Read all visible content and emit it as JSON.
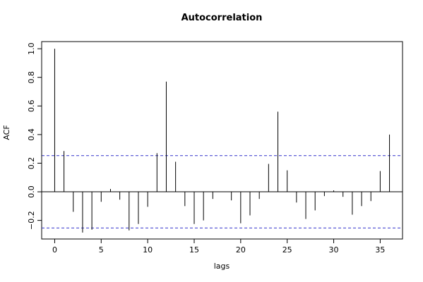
{
  "chart_data": {
    "type": "bar",
    "title": "Autocorrelation",
    "xlabel": "lags",
    "ylabel": "ACF",
    "xlim": [
      -1.4,
      37.4
    ],
    "ylim": [
      -0.33,
      1.05
    ],
    "x_ticks": [
      "0",
      "5",
      "10",
      "15",
      "20",
      "25",
      "30",
      "35"
    ],
    "y_ticks": [
      "−0.2",
      "0.0",
      "0.2",
      "0.4",
      "0.6",
      "0.8",
      "1.0"
    ],
    "confidence_limit": 0.253,
    "confidence_color": "#3333cc",
    "bar_color": "#000000",
    "grid": false,
    "lags": [
      0,
      1,
      2,
      3,
      4,
      5,
      6,
      7,
      8,
      9,
      10,
      11,
      12,
      13,
      14,
      15,
      16,
      17,
      18,
      19,
      20,
      21,
      22,
      23,
      24,
      25,
      26,
      27,
      28,
      29,
      30,
      31,
      32,
      33,
      34,
      35,
      36
    ],
    "acf": [
      1.0,
      0.285,
      -0.14,
      -0.285,
      -0.265,
      -0.07,
      0.02,
      -0.055,
      -0.27,
      -0.225,
      -0.105,
      0.27,
      0.77,
      0.21,
      -0.1,
      -0.225,
      -0.2,
      -0.05,
      0.0,
      -0.06,
      -0.22,
      -0.165,
      -0.05,
      0.195,
      0.56,
      0.15,
      -0.075,
      -0.19,
      -0.13,
      -0.03,
      0.01,
      -0.035,
      -0.16,
      -0.1,
      -0.065,
      0.145,
      0.4
    ]
  }
}
